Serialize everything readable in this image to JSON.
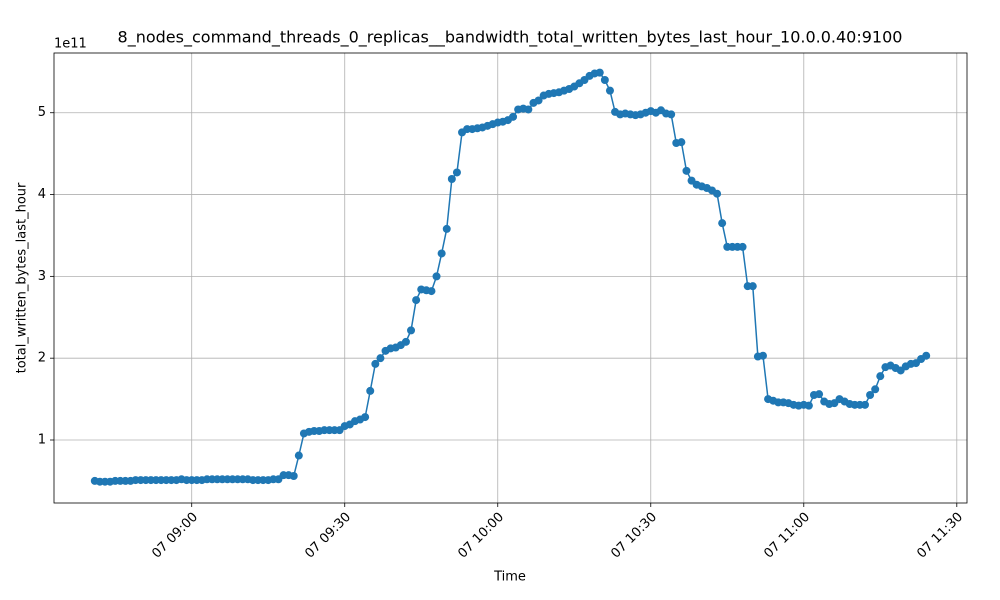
{
  "chart_data": {
    "type": "line",
    "title": "8_nodes_command_threads_0_replicas__bandwidth_total_written_bytes_last_hour_10.0.0.40:9100",
    "x_label": "Time",
    "y_label": "total_written_bytes_last_hour",
    "y_offset_text": "1e11",
    "x": [
      "07 08:41",
      "07 08:42",
      "07 08:43",
      "07 08:44",
      "07 08:45",
      "07 08:46",
      "07 08:47",
      "07 08:48",
      "07 08:49",
      "07 08:50",
      "07 08:51",
      "07 08:52",
      "07 08:53",
      "07 08:54",
      "07 08:55",
      "07 08:56",
      "07 08:57",
      "07 08:58",
      "07 08:59",
      "07 09:00",
      "07 09:01",
      "07 09:02",
      "07 09:03",
      "07 09:04",
      "07 09:05",
      "07 09:06",
      "07 09:07",
      "07 09:08",
      "07 09:09",
      "07 09:10",
      "07 09:11",
      "07 09:12",
      "07 09:13",
      "07 09:14",
      "07 09:15",
      "07 09:16",
      "07 09:17",
      "07 09:18",
      "07 09:19",
      "07 09:20",
      "07 09:21",
      "07 09:22",
      "07 09:23",
      "07 09:24",
      "07 09:25",
      "07 09:26",
      "07 09:27",
      "07 09:28",
      "07 09:29",
      "07 09:30",
      "07 09:31",
      "07 09:32",
      "07 09:33",
      "07 09:34",
      "07 09:35",
      "07 09:36",
      "07 09:37",
      "07 09:38",
      "07 09:39",
      "07 09:40",
      "07 09:41",
      "07 09:42",
      "07 09:43",
      "07 09:44",
      "07 09:45",
      "07 09:46",
      "07 09:47",
      "07 09:48",
      "07 09:49",
      "07 09:50",
      "07 09:51",
      "07 09:52",
      "07 09:53",
      "07 09:54",
      "07 09:55",
      "07 09:56",
      "07 09:57",
      "07 09:58",
      "07 09:59",
      "07 10:00",
      "07 10:01",
      "07 10:02",
      "07 10:03",
      "07 10:04",
      "07 10:05",
      "07 10:06",
      "07 10:07",
      "07 10:08",
      "07 10:09",
      "07 10:10",
      "07 10:11",
      "07 10:12",
      "07 10:13",
      "07 10:14",
      "07 10:15",
      "07 10:16",
      "07 10:17",
      "07 10:18",
      "07 10:19",
      "07 10:20",
      "07 10:21",
      "07 10:22",
      "07 10:23",
      "07 10:24",
      "07 10:25",
      "07 10:26",
      "07 10:27",
      "07 10:28",
      "07 10:29",
      "07 10:30",
      "07 10:31",
      "07 10:32",
      "07 10:33",
      "07 10:34",
      "07 10:35",
      "07 10:36",
      "07 10:37",
      "07 10:38",
      "07 10:39",
      "07 10:40",
      "07 10:41",
      "07 10:42",
      "07 10:43",
      "07 10:44",
      "07 10:45",
      "07 10:46",
      "07 10:47",
      "07 10:48",
      "07 10:49",
      "07 10:50",
      "07 10:51",
      "07 10:52",
      "07 10:53",
      "07 10:54",
      "07 10:55",
      "07 10:56",
      "07 10:57",
      "07 10:58",
      "07 10:59",
      "07 11:00",
      "07 11:01",
      "07 11:02",
      "07 11:03",
      "07 11:04",
      "07 11:05",
      "07 11:06",
      "07 11:07",
      "07 11:08",
      "07 11:09",
      "07 11:10",
      "07 11:11",
      "07 11:12",
      "07 11:13",
      "07 11:14",
      "07 11:15",
      "07 11:16",
      "07 11:17",
      "07 11:18",
      "07 11:19",
      "07 11:20",
      "07 11:21",
      "07 11:22",
      "07 11:23",
      "07 11:24"
    ],
    "series": [
      {
        "color": "#1f77b4",
        "values": [
          0.5,
          0.49,
          0.49,
          0.49,
          0.5,
          0.5,
          0.5,
          0.5,
          0.51,
          0.51,
          0.51,
          0.51,
          0.51,
          0.51,
          0.51,
          0.51,
          0.51,
          0.52,
          0.51,
          0.51,
          0.51,
          0.51,
          0.52,
          0.52,
          0.52,
          0.52,
          0.52,
          0.52,
          0.52,
          0.52,
          0.52,
          0.51,
          0.51,
          0.51,
          0.51,
          0.52,
          0.52,
          0.57,
          0.57,
          0.56,
          0.81,
          1.08,
          1.1,
          1.11,
          1.11,
          1.12,
          1.12,
          1.12,
          1.12,
          1.17,
          1.19,
          1.23,
          1.25,
          1.28,
          1.6,
          1.93,
          2.0,
          2.09,
          2.12,
          2.13,
          2.16,
          2.2,
          2.34,
          2.71,
          2.84,
          2.83,
          2.82,
          3.0,
          3.28,
          3.58,
          4.19,
          4.27,
          4.76,
          4.8,
          4.8,
          4.81,
          4.82,
          4.84,
          4.86,
          4.88,
          4.89,
          4.91,
          4.95,
          5.04,
          5.05,
          5.04,
          5.12,
          5.15,
          5.21,
          5.23,
          5.24,
          5.25,
          5.27,
          5.29,
          5.32,
          5.36,
          5.4,
          5.45,
          5.48,
          5.49,
          5.4,
          5.27,
          5.01,
          4.98,
          4.99,
          4.98,
          4.97,
          4.98,
          5.0,
          5.02,
          5.0,
          5.03,
          4.99,
          4.98,
          4.63,
          4.64,
          4.29,
          4.17,
          4.12,
          4.1,
          4.08,
          4.05,
          4.01,
          3.65,
          3.36,
          3.36,
          3.36,
          3.36,
          2.88,
          2.88,
          2.02,
          2.03,
          1.5,
          1.48,
          1.46,
          1.46,
          1.45,
          1.43,
          1.42,
          1.43,
          1.42,
          1.55,
          1.56,
          1.47,
          1.44,
          1.45,
          1.5,
          1.47,
          1.44,
          1.43,
          1.43,
          1.43,
          1.55,
          1.62,
          1.78,
          1.89,
          1.91,
          1.88,
          1.85,
          1.9,
          1.93,
          1.94,
          1.99,
          2.03
        ]
      }
    ],
    "xlim": [
      "07 08:33",
      "07 11:32"
    ],
    "xticks": [
      "07 09:00",
      "07 09:30",
      "07 10:00",
      "07 10:30",
      "07 11:00",
      "07 11:30"
    ],
    "ylim": [
      0.23,
      5.73
    ],
    "yticks": [
      1,
      2,
      3,
      4,
      5
    ],
    "grid": true
  }
}
